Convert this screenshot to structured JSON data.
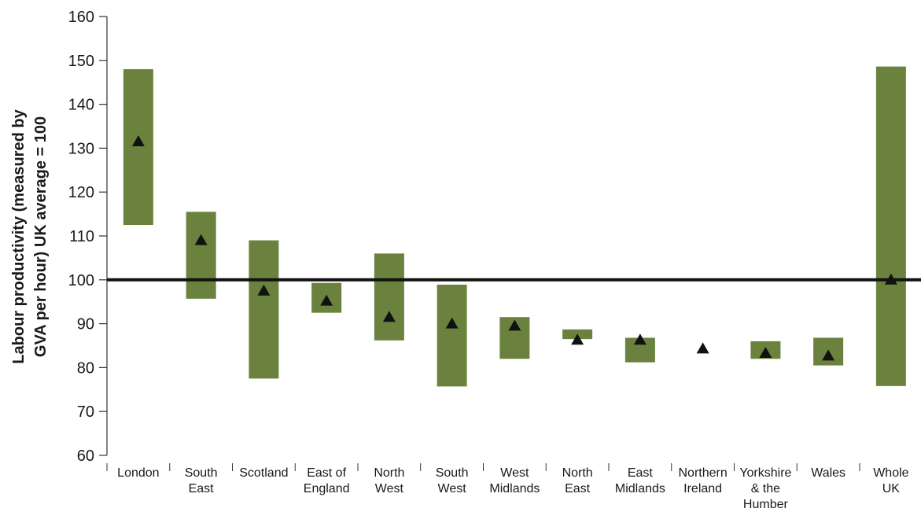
{
  "chart_data": {
    "type": "range",
    "ylabel_lines": [
      "Labour productivity (measured by",
      "GVA per hour) UK average = 100"
    ],
    "ylim": [
      60,
      160
    ],
    "yticks": [
      60,
      70,
      80,
      90,
      100,
      110,
      120,
      130,
      140,
      150,
      160
    ],
    "reference_line": 100,
    "grid": false,
    "bar_color": "#6b823f",
    "marker_color": "#111111",
    "categories": [
      {
        "label": [
          "London"
        ],
        "low": 112.5,
        "high": 148,
        "marker": 131.5
      },
      {
        "label": [
          "South",
          "East"
        ],
        "low": 95.7,
        "high": 115.5,
        "marker": 109
      },
      {
        "label": [
          "Scotland"
        ],
        "low": 77.5,
        "high": 109,
        "marker": 97.5
      },
      {
        "label": [
          "East of",
          "England"
        ],
        "low": 92.5,
        "high": 99.3,
        "marker": 95.2
      },
      {
        "label": [
          "North",
          "West"
        ],
        "low": 86.2,
        "high": 106,
        "marker": 91.5
      },
      {
        "label": [
          "South",
          "West"
        ],
        "low": 75.7,
        "high": 98.9,
        "marker": 90
      },
      {
        "label": [
          "West",
          "Midlands"
        ],
        "low": 82,
        "high": 91.5,
        "marker": 89.5
      },
      {
        "label": [
          "North",
          "East"
        ],
        "low": 86.5,
        "high": 88.7,
        "marker": 86.3
      },
      {
        "label": [
          "East",
          "Midlands"
        ],
        "low": 81.2,
        "high": 86.8,
        "marker": 86.3
      },
      {
        "label": [
          "Northern",
          "Ireland"
        ],
        "low": null,
        "high": null,
        "marker": 84.3
      },
      {
        "label": [
          "Yorkshire",
          "& the",
          "Humber"
        ],
        "low": 82,
        "high": 86,
        "marker": 83.3
      },
      {
        "label": [
          "Wales"
        ],
        "low": 80.5,
        "high": 86.8,
        "marker": 82.7
      },
      {
        "label": [
          "Whole",
          "UK"
        ],
        "low": 75.8,
        "high": 148.6,
        "marker": 100
      }
    ]
  }
}
